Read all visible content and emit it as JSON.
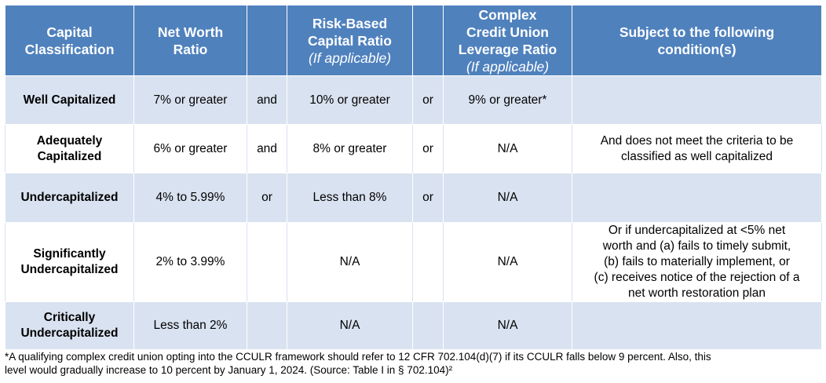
{
  "header": {
    "capital_classification": [
      "Capital",
      "Classification"
    ],
    "net_worth_ratio": [
      "Net Worth",
      "Ratio"
    ],
    "risk_based": [
      "Risk-Based",
      "Capital Ratio"
    ],
    "risk_based_sub": "(If applicable)",
    "cculr": [
      "Complex",
      "Credit Union",
      "Leverage Ratio"
    ],
    "cculr_sub": "(If applicable)",
    "conditions": [
      "Subject to the following",
      "condition(s)"
    ]
  },
  "rows": [
    {
      "classification": [
        "Well Capitalized"
      ],
      "net_worth": "7% or greater",
      "conj1": "and",
      "risk_based": "10% or greater",
      "conj2": "or",
      "cculr": "9% or greater*",
      "condition": []
    },
    {
      "classification": [
        "Adequately",
        "Capitalized"
      ],
      "net_worth": "6% or greater",
      "conj1": "and",
      "risk_based": "8% or greater",
      "conj2": "or",
      "cculr": "N/A",
      "condition": [
        "And does not meet the criteria to be",
        "classified as well capitalized"
      ]
    },
    {
      "classification": [
        "Undercapitalized"
      ],
      "net_worth": "4% to 5.99%",
      "conj1": "or",
      "risk_based": "Less than 8%",
      "conj2": "or",
      "cculr": "N/A",
      "condition": []
    },
    {
      "classification": [
        "Significantly",
        "Undercapitalized"
      ],
      "net_worth": "2% to 3.99%",
      "conj1": "",
      "risk_based": "N/A",
      "conj2": "",
      "cculr": "N/A",
      "condition": [
        "Or if undercapitalized at <5% net",
        "worth and (a) fails to timely submit,",
        "(b) fails to materially implement, or",
        "(c) receives notice of the rejection of a",
        "net worth restoration plan"
      ]
    },
    {
      "classification": [
        "Critically",
        "Undercapitalized"
      ],
      "net_worth": "Less than 2%",
      "conj1": "",
      "risk_based": "N/A",
      "conj2": "",
      "cculr": "N/A",
      "condition": []
    }
  ],
  "footnote": [
    "*A qualifying complex credit union opting into the CCULR framework should refer to 12 CFR 702.104(d)(7) if its CCULR falls below 9 percent. Also, this",
    "level would gradually increase to 10 percent by January 1, 2024. (Source: Table I in § 702.104)²"
  ],
  "colors": {
    "header_bg": "#4f81bd",
    "band_bg": "#d9e2f0",
    "white": "#ffffff"
  }
}
